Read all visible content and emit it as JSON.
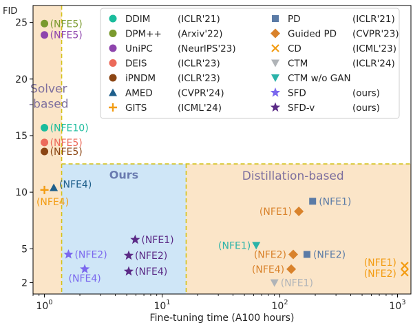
{
  "chart_data": {
    "type": "scatter",
    "title": "",
    "xlabel": "Fine-tuning time (A100 hours)",
    "ylabel": "FID",
    "x_scale": "log",
    "xlim": [
      0.8,
      1300
    ],
    "ylim": [
      1.0,
      26.5
    ],
    "x_ticks": [
      {
        "value": 1,
        "base": "10",
        "exp": "0"
      },
      {
        "value": 10,
        "base": "10",
        "exp": "1"
      },
      {
        "value": 100,
        "base": "10",
        "exp": "2"
      },
      {
        "value": 1000,
        "base": "10",
        "exp": "3"
      }
    ],
    "y_ticks": [
      2,
      5,
      10,
      15,
      20,
      25
    ],
    "grid": false,
    "legend_position": "top-right",
    "regions": [
      {
        "id": "solver",
        "label": "Solver\n-based",
        "x0": 0.8,
        "x1": 1.4,
        "y0": 1.0,
        "y1": 26.5,
        "fill": "#fbe5c8",
        "text_color": "#7d6f9e",
        "bold": false
      },
      {
        "id": "ours",
        "label": "Ours",
        "x0": 1.4,
        "x1": 16,
        "y0": 1.0,
        "y1": 12.5,
        "fill": "#cfe6f7",
        "text_color": "#6a7bb0",
        "bold": true
      },
      {
        "id": "distill",
        "label": "Distillation-based",
        "x0": 16,
        "x1": 1300,
        "y0": 1.0,
        "y1": 12.5,
        "fill": "#fbe5c8",
        "text_color": "#7d6f9e",
        "bold": false
      }
    ],
    "series": [
      {
        "name": "DDIM",
        "venue": "(ICLR'21)",
        "marker": "circle",
        "color": "#1abc9c",
        "points": [
          {
            "x": 1.0,
            "y": 15.7,
            "label": "(NFE10)"
          }
        ]
      },
      {
        "name": "DPM++",
        "venue": "(Arxiv'22)",
        "marker": "circle",
        "color": "#7a9a2e",
        "points": [
          {
            "x": 1.0,
            "y": 24.9,
            "label": "(NFE5)"
          }
        ]
      },
      {
        "name": "UniPC",
        "venue": "(NeurIPS'23)",
        "marker": "circle",
        "color": "#8e44ad",
        "points": [
          {
            "x": 1.0,
            "y": 23.9,
            "label": "(NFE5)"
          }
        ]
      },
      {
        "name": "DEIS",
        "venue": "(ICLR'23)",
        "marker": "circle",
        "color": "#ec6a5a",
        "points": [
          {
            "x": 1.0,
            "y": 14.4,
            "label": "(NFE5)"
          }
        ]
      },
      {
        "name": "iPNDM",
        "venue": "(ICLR'23)",
        "marker": "circle",
        "color": "#8b4513",
        "points": [
          {
            "x": 1.0,
            "y": 13.6,
            "label": "(NFE5)"
          }
        ]
      },
      {
        "name": "AMED",
        "venue": "(CVPR'24)",
        "marker": "triangle-up",
        "color": "#1f5f8b",
        "points": [
          {
            "x": 1.2,
            "y": 10.4,
            "label": "(NFE4)"
          }
        ]
      },
      {
        "name": "GITS",
        "venue": "(ICML'24)",
        "marker": "plus",
        "color": "#f39c12",
        "points": [
          {
            "x": 1.0,
            "y": 10.2,
            "label": "(NFE4)"
          }
        ]
      },
      {
        "name": "PD",
        "venue": "(ICLR'21)",
        "marker": "square",
        "color": "#5b7ba6",
        "points": [
          {
            "x": 190,
            "y": 9.2,
            "label": "(NFE1)"
          },
          {
            "x": 170,
            "y": 4.5,
            "label": "(NFE2)"
          }
        ]
      },
      {
        "name": "Guided PD",
        "venue": "(CVPR'23)",
        "marker": "diamond",
        "color": "#d9822b",
        "points": [
          {
            "x": 145,
            "y": 8.3,
            "label": "(NFE1)"
          },
          {
            "x": 130,
            "y": 4.5,
            "label": "(NFE2)"
          },
          {
            "x": 125,
            "y": 3.2,
            "label": "(NFE4)"
          }
        ]
      },
      {
        "name": "CD",
        "venue": "(ICML'23)",
        "marker": "x",
        "color": "#f39c12",
        "points": [
          {
            "x": 1150,
            "y": 3.5,
            "label": "(NFE1)"
          },
          {
            "x": 1150,
            "y": 2.9,
            "label": "(NFE2)"
          }
        ]
      },
      {
        "name": "CTM",
        "venue": "(ICLR'24)",
        "marker": "triangle-down",
        "color": "#b0b4b8",
        "points": [
          {
            "x": 90,
            "y": 2.0,
            "label": "(NFE1)"
          }
        ]
      },
      {
        "name": "CTM w/o GAN",
        "venue": "",
        "marker": "triangle-down",
        "color": "#2bb3a9",
        "points": [
          {
            "x": 63,
            "y": 5.3,
            "label": "(NFE1)"
          }
        ]
      },
      {
        "name": "SFD",
        "venue": "(ours)",
        "marker": "star",
        "color": "#7b68ee",
        "points": [
          {
            "x": 1.6,
            "y": 4.5,
            "label": "(NFE2)"
          },
          {
            "x": 2.2,
            "y": 3.2,
            "label": "(NFE4)"
          }
        ]
      },
      {
        "name": "SFD-v",
        "venue": "(ours)",
        "marker": "star",
        "color": "#5b2a86",
        "points": [
          {
            "x": 5.9,
            "y": 5.8,
            "label": "(NFE1)"
          },
          {
            "x": 5.2,
            "y": 4.4,
            "label": "(NFE2)"
          },
          {
            "x": 5.2,
            "y": 3.0,
            "label": "(NFE4)"
          }
        ]
      }
    ]
  }
}
